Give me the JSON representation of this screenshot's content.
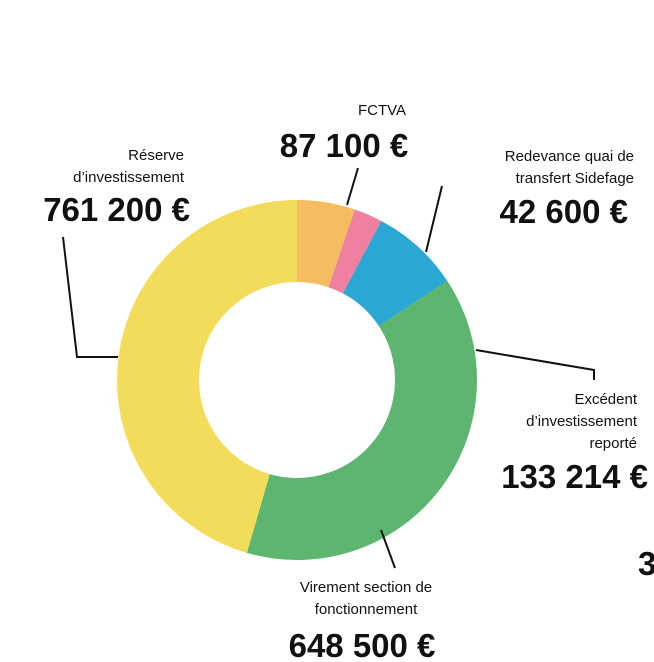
{
  "chart_data": {
    "type": "pie",
    "donut": true,
    "categories": [
      "FCTVA",
      "Redevance quai de transfert Sidefage",
      "Excédent d’investissement reporté",
      "Virement section de fonctionnement",
      "Réserve d’investissement"
    ],
    "values": [
      87100,
      42600,
      133214,
      648500,
      761200
    ],
    "value_labels": [
      "87 100 €",
      "42 600 €",
      "133 214 €",
      "648 500 €",
      "761 200 €"
    ],
    "colors": [
      "#f5bd60",
      "#ef809f",
      "#2aa7d3",
      "#5cb66f",
      "#f2dc5a"
    ]
  },
  "partial_text": "3"
}
